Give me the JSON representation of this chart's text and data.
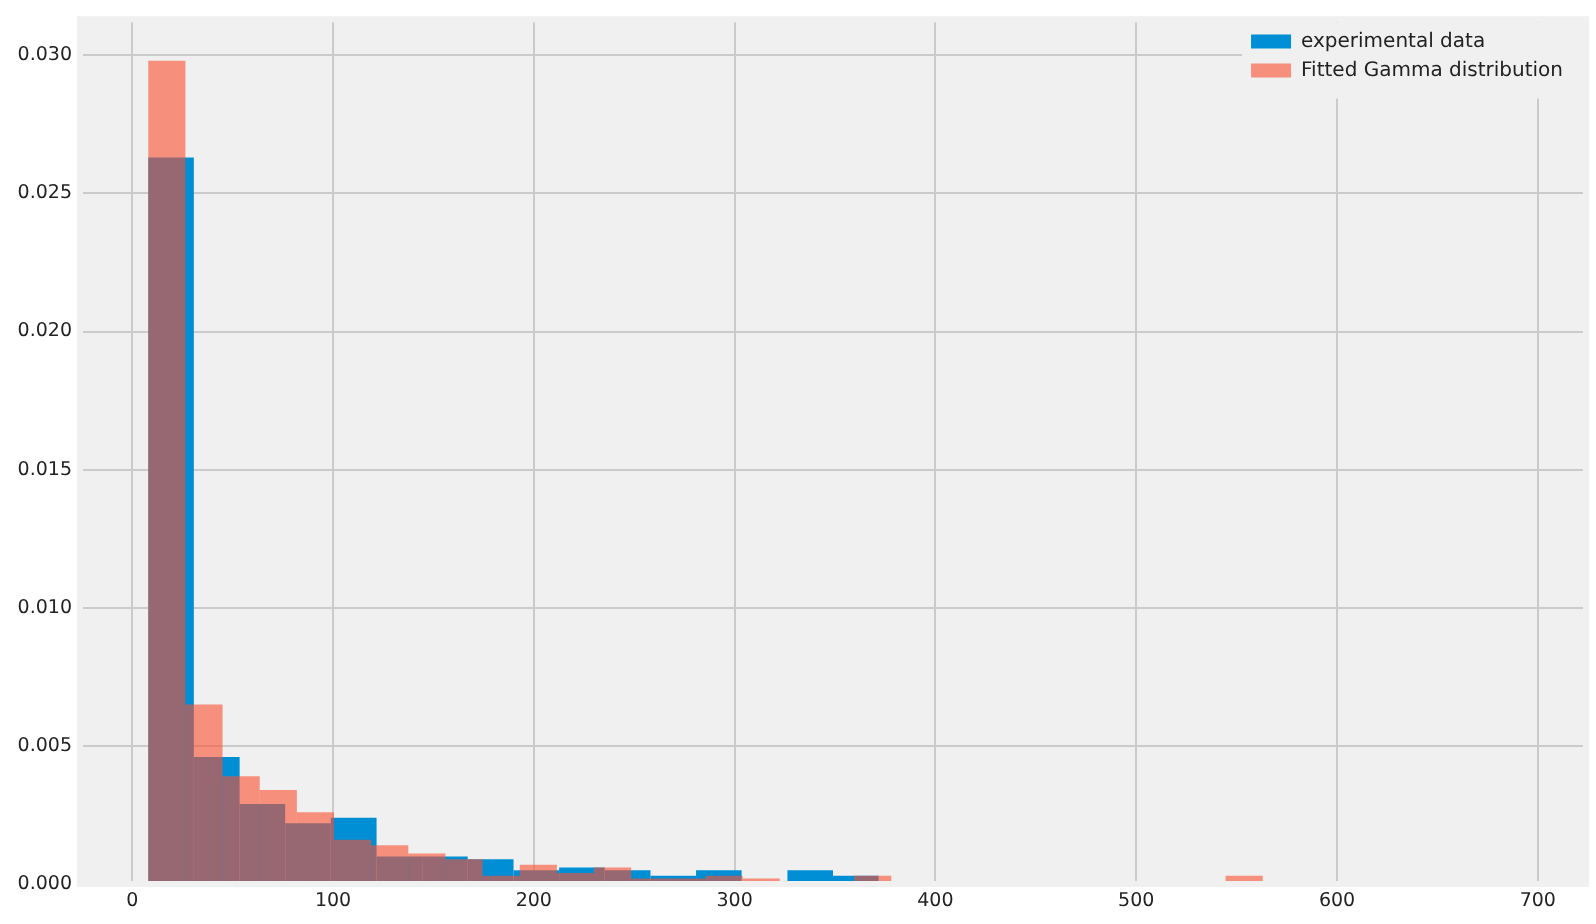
{
  "chart_data": {
    "type": "histogram",
    "bins": [
      8,
      30.7,
      53.5,
      76.2,
      98.9,
      121.7,
      144.4,
      167.1,
      189.9,
      212.6,
      235.3,
      258.1,
      280.8,
      303.5,
      326.3,
      349,
      371.7,
      394.5,
      417.2,
      439.9,
      462.7,
      485.4,
      508.1,
      530.9,
      553.6,
      576.3,
      599.1,
      621.8,
      644.5,
      667.3,
      690
    ],
    "series": [
      {
        "name": "experimental data",
        "color": "#008fd5",
        "values": [
          0.0263,
          0.0046,
          0.0029,
          0.0022,
          0.0024,
          0.001,
          0.001,
          0.0009,
          0.0005,
          0.0006,
          0.0005,
          0.0003,
          0.0005,
          0,
          0.0005,
          0.0003,
          0,
          0,
          0,
          0,
          0,
          0,
          0,
          0,
          0,
          0,
          0,
          0,
          0,
          0
        ]
      },
      {
        "name": "Fitted Gamma distribution",
        "color": "#f78f7d",
        "bins": [
          8,
          26.5,
          45,
          63.5,
          82,
          100.5,
          119,
          137.5,
          156,
          174.5,
          193,
          211.5,
          230,
          248.5,
          267,
          285.5,
          304,
          322.5,
          341,
          359.5,
          378,
          396.5,
          415,
          433.5,
          452,
          470.5,
          489,
          507.5,
          526,
          544.5,
          563
        ],
        "values": [
          0.0298,
          0.0065,
          0.0039,
          0.0034,
          0.0026,
          0.0016,
          0.0014,
          0.0011,
          0.0009,
          0.0003,
          0.0007,
          0.0004,
          0.0006,
          0.0002,
          0.0002,
          0.0003,
          0.0002,
          0,
          0,
          0.0003,
          0,
          0,
          0,
          0,
          0,
          0,
          0,
          0,
          0,
          0.0003
        ]
      }
    ],
    "xlim": [
      -26,
      724
    ],
    "ylim": [
      0,
      0.0313
    ],
    "xticks": [
      0,
      100,
      200,
      300,
      400,
      500,
      600,
      700
    ],
    "yticks": [
      {
        "value": 0,
        "label": "0.000"
      },
      {
        "value": 0.005,
        "label": "0.005"
      },
      {
        "value": 0.01,
        "label": "0.010"
      },
      {
        "value": 0.015,
        "label": "0.015"
      },
      {
        "value": 0.02,
        "label": "0.020"
      },
      {
        "value": 0.025,
        "label": "0.025"
      },
      {
        "value": 0.03,
        "label": "0.030"
      }
    ],
    "grid": true,
    "legend": "top right"
  }
}
